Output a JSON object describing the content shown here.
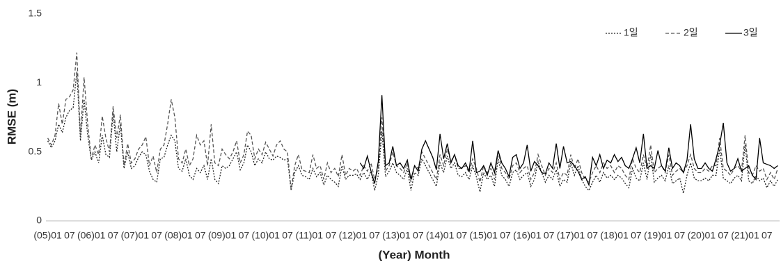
{
  "chart_data": {
    "type": "line",
    "y_label": "RMSE (m)",
    "x_label": "(Year) Month",
    "ylim": [
      0,
      1.5
    ],
    "yticks": [
      0,
      0.5,
      1,
      1.5
    ],
    "legend": "top-right",
    "categories": [
      "(05)01",
      null,
      null,
      null,
      null,
      null,
      "07",
      null,
      null,
      null,
      null,
      null,
      "(06)01",
      null,
      null,
      null,
      null,
      null,
      "07",
      null,
      null,
      null,
      null,
      null,
      "(07)01",
      null,
      null,
      null,
      null,
      null,
      "07",
      null,
      null,
      null,
      null,
      null,
      "(08)01",
      null,
      null,
      null,
      null,
      null,
      "07",
      null,
      null,
      null,
      null,
      null,
      "(09)01",
      null,
      null,
      null,
      null,
      null,
      "07",
      null,
      null,
      null,
      null,
      null,
      "(10)01",
      null,
      null,
      null,
      null,
      null,
      "07",
      null,
      null,
      null,
      null,
      null,
      "(11)01",
      null,
      null,
      null,
      null,
      null,
      "07",
      null,
      null,
      null,
      null,
      null,
      "(12)01",
      null,
      null,
      null,
      null,
      null,
      "07",
      null,
      null,
      null,
      null,
      null,
      "(13)01",
      null,
      null,
      null,
      null,
      null,
      "07",
      null,
      null,
      null,
      null,
      null,
      "(14)01",
      null,
      null,
      null,
      null,
      null,
      "07",
      null,
      null,
      null,
      null,
      null,
      "(15)01",
      null,
      null,
      null,
      null,
      null,
      "07",
      null,
      null,
      null,
      null,
      null,
      "(16)01",
      null,
      null,
      null,
      null,
      null,
      "07",
      null,
      null,
      null,
      null,
      null,
      "(17)01",
      null,
      null,
      null,
      null,
      null,
      "07",
      null,
      null,
      null,
      null,
      null,
      "(18)01",
      null,
      null,
      null,
      null,
      null,
      "07",
      null,
      null,
      null,
      null,
      null,
      "(19)01",
      null,
      null,
      null,
      null,
      null,
      "07",
      null,
      null,
      null,
      null,
      null,
      "(20)01",
      null,
      null,
      null,
      null,
      null,
      "07",
      null,
      null,
      null,
      null,
      null,
      "(21)01",
      null,
      null,
      null,
      null,
      null,
      "07",
      null,
      null,
      null
    ],
    "series": [
      {
        "name": "1일",
        "color": "#222222",
        "dash": "2,2",
        "values": [
          0.58,
          0.53,
          0.58,
          0.7,
          0.64,
          0.75,
          0.8,
          0.82,
          1.08,
          0.58,
          0.88,
          0.62,
          0.44,
          0.5,
          0.42,
          0.62,
          0.48,
          0.46,
          0.78,
          0.5,
          0.7,
          0.38,
          0.5,
          0.38,
          0.4,
          0.46,
          0.5,
          0.48,
          0.36,
          0.3,
          0.28,
          0.45,
          0.46,
          0.55,
          0.62,
          0.58,
          0.38,
          0.36,
          0.45,
          0.33,
          0.3,
          0.38,
          0.35,
          0.4,
          0.3,
          0.45,
          0.3,
          0.27,
          0.4,
          0.38,
          0.4,
          0.45,
          0.5,
          0.37,
          0.42,
          0.55,
          0.5,
          0.4,
          0.45,
          0.42,
          0.5,
          0.45,
          0.44,
          0.47,
          0.46,
          0.44,
          0.45,
          0.22,
          0.35,
          0.4,
          0.33,
          0.32,
          0.3,
          0.38,
          0.32,
          0.35,
          0.26,
          0.33,
          0.3,
          0.28,
          0.25,
          0.4,
          0.3,
          0.33,
          0.33,
          0.34,
          0.3,
          0.35,
          0.3,
          0.36,
          0.22,
          0.33,
          0.65,
          0.32,
          0.36,
          0.42,
          0.35,
          0.33,
          0.3,
          0.38,
          0.22,
          0.35,
          0.33,
          0.45,
          0.4,
          0.35,
          0.3,
          0.25,
          0.42,
          0.35,
          0.47,
          0.38,
          0.42,
          0.33,
          0.32,
          0.35,
          0.3,
          0.4,
          0.32,
          0.21,
          0.35,
          0.3,
          0.33,
          0.25,
          0.45,
          0.33,
          0.3,
          0.25,
          0.35,
          0.37,
          0.3,
          0.33,
          0.35,
          0.25,
          0.3,
          0.43,
          0.35,
          0.28,
          0.33,
          0.3,
          0.37,
          0.25,
          0.3,
          0.28,
          0.42,
          0.33,
          0.4,
          0.3,
          0.25,
          0.22,
          0.28,
          0.33,
          0.28,
          0.35,
          0.31,
          0.33,
          0.3,
          0.33,
          0.31,
          0.27,
          0.24,
          0.38,
          0.31,
          0.29,
          0.42,
          0.3,
          0.48,
          0.28,
          0.31,
          0.33,
          0.29,
          0.4,
          0.27,
          0.29,
          0.31,
          0.2,
          0.33,
          0.42,
          0.31,
          0.29,
          0.29,
          0.31,
          0.29,
          0.33,
          0.33,
          0.52,
          0.31,
          0.29,
          0.27,
          0.31,
          0.33,
          0.29,
          0.55,
          0.29,
          0.27,
          0.33,
          0.29,
          0.31,
          0.24,
          0.29,
          0.25,
          0.3
        ]
      },
      {
        "name": "2일",
        "color": "#555555",
        "dash": "5,3",
        "values": [
          0.6,
          0.55,
          0.62,
          0.85,
          0.7,
          0.88,
          0.9,
          0.95,
          1.22,
          0.62,
          1.04,
          0.7,
          0.45,
          0.55,
          0.48,
          0.76,
          0.6,
          0.5,
          0.83,
          0.6,
          0.77,
          0.4,
          0.56,
          0.42,
          0.45,
          0.52,
          0.55,
          0.61,
          0.4,
          0.47,
          0.35,
          0.52,
          0.55,
          0.7,
          0.88,
          0.75,
          0.45,
          0.42,
          0.52,
          0.4,
          0.45,
          0.62,
          0.55,
          0.58,
          0.4,
          0.7,
          0.42,
          0.4,
          0.52,
          0.48,
          0.45,
          0.5,
          0.58,
          0.42,
          0.48,
          0.65,
          0.62,
          0.45,
          0.52,
          0.48,
          0.57,
          0.52,
          0.47,
          0.55,
          0.58,
          0.52,
          0.5,
          0.23,
          0.4,
          0.48,
          0.37,
          0.36,
          0.35,
          0.48,
          0.38,
          0.4,
          0.3,
          0.42,
          0.35,
          0.38,
          0.32,
          0.48,
          0.33,
          0.38,
          0.36,
          0.38,
          0.33,
          0.4,
          0.36,
          0.42,
          0.3,
          0.38,
          0.75,
          0.36,
          0.4,
          0.5,
          0.4,
          0.38,
          0.35,
          0.42,
          0.28,
          0.4,
          0.38,
          0.5,
          0.45,
          0.4,
          0.35,
          0.3,
          0.48,
          0.4,
          0.52,
          0.43,
          0.48,
          0.38,
          0.38,
          0.4,
          0.35,
          0.45,
          0.38,
          0.28,
          0.4,
          0.35,
          0.38,
          0.3,
          0.5,
          0.38,
          0.35,
          0.3,
          0.4,
          0.42,
          0.35,
          0.38,
          0.4,
          0.3,
          0.35,
          0.48,
          0.4,
          0.33,
          0.38,
          0.35,
          0.42,
          0.3,
          0.35,
          0.33,
          0.48,
          0.38,
          0.45,
          0.35,
          0.3,
          0.28,
          0.35,
          0.4,
          0.35,
          0.42,
          0.38,
          0.4,
          0.35,
          0.4,
          0.38,
          0.33,
          0.3,
          0.45,
          0.38,
          0.35,
          0.48,
          0.38,
          0.55,
          0.35,
          0.38,
          0.4,
          0.35,
          0.48,
          0.33,
          0.36,
          0.38,
          0.35,
          0.4,
          0.48,
          0.38,
          0.35,
          0.35,
          0.38,
          0.36,
          0.4,
          0.4,
          0.6,
          0.38,
          0.36,
          0.33,
          0.38,
          0.4,
          0.36,
          0.62,
          0.35,
          0.33,
          0.4,
          0.36,
          0.38,
          0.3,
          0.35,
          0.3,
          0.38
        ]
      },
      {
        "name": "3일",
        "color": "#000000",
        "dash": "none",
        "values": [
          null,
          null,
          null,
          null,
          null,
          null,
          null,
          null,
          null,
          null,
          null,
          null,
          null,
          null,
          null,
          null,
          null,
          null,
          null,
          null,
          null,
          null,
          null,
          null,
          null,
          null,
          null,
          null,
          null,
          null,
          null,
          null,
          null,
          null,
          null,
          null,
          null,
          null,
          null,
          null,
          null,
          null,
          null,
          null,
          null,
          null,
          null,
          null,
          null,
          null,
          null,
          null,
          null,
          null,
          null,
          null,
          null,
          null,
          null,
          null,
          null,
          null,
          null,
          null,
          null,
          null,
          null,
          null,
          null,
          null,
          null,
          null,
          null,
          null,
          null,
          null,
          null,
          null,
          null,
          null,
          null,
          null,
          null,
          null,
          null,
          null,
          0.42,
          0.38,
          0.47,
          0.36,
          0.27,
          0.43,
          0.91,
          0.4,
          0.42,
          0.54,
          0.4,
          0.42,
          0.38,
          0.44,
          0.3,
          0.4,
          0.36,
          0.52,
          0.58,
          0.52,
          0.46,
          0.37,
          0.63,
          0.45,
          0.56,
          0.42,
          0.48,
          0.4,
          0.38,
          0.42,
          0.36,
          0.58,
          0.35,
          0.36,
          0.4,
          0.33,
          0.42,
          0.35,
          0.51,
          0.42,
          0.38,
          0.32,
          0.46,
          0.48,
          0.38,
          0.42,
          0.55,
          0.36,
          0.43,
          0.4,
          0.35,
          0.34,
          0.42,
          0.38,
          0.56,
          0.38,
          0.54,
          0.42,
          0.43,
          0.4,
          0.36,
          0.3,
          0.32,
          0.26,
          0.46,
          0.4,
          0.48,
          0.38,
          0.44,
          0.42,
          0.48,
          0.43,
          0.46,
          0.4,
          0.38,
          0.45,
          0.53,
          0.42,
          0.63,
          0.38,
          0.4,
          0.38,
          0.51,
          0.4,
          0.36,
          0.53,
          0.38,
          0.42,
          0.4,
          0.35,
          0.44,
          0.7,
          0.45,
          0.38,
          0.38,
          0.42,
          0.38,
          0.36,
          0.45,
          0.55,
          0.71,
          0.42,
          0.36,
          0.38,
          0.45,
          0.36,
          0.38,
          0.4,
          0.33,
          0.3,
          0.6,
          0.42,
          0.41,
          0.4,
          0.38,
          0.4
        ]
      }
    ]
  }
}
